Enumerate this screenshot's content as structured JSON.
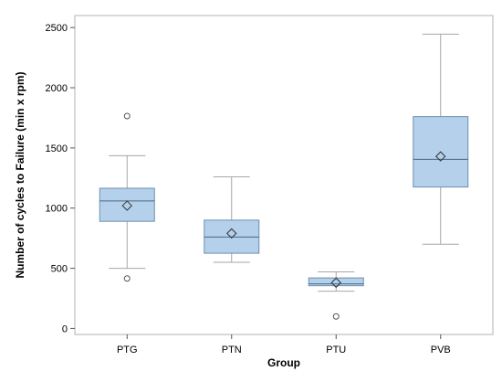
{
  "chart_data": {
    "type": "box",
    "xlabel": "Group",
    "ylabel": "Number of cycles to Failure (min x rpm)",
    "ylim": [
      -50,
      2600
    ],
    "yticks": [
      0,
      500,
      1000,
      1500,
      2000,
      2500
    ],
    "categories": [
      "PTG",
      "PTN",
      "PTU",
      "PVB"
    ],
    "boxes": [
      {
        "category": "PTG",
        "whisker_low": 500,
        "q1": 890,
        "median": 1060,
        "q3": 1165,
        "whisker_high": 1435,
        "mean": 1020,
        "outliers": [
          1765,
          415
        ]
      },
      {
        "category": "PTN",
        "whisker_low": 550,
        "q1": 625,
        "median": 760,
        "q3": 900,
        "whisker_high": 1260,
        "mean": 790,
        "outliers": []
      },
      {
        "category": "PTU",
        "whisker_low": 310,
        "q1": 355,
        "median": 370,
        "q3": 420,
        "whisker_high": 470,
        "mean": 380,
        "outliers": [
          100
        ]
      },
      {
        "category": "PVB",
        "whisker_low": 700,
        "q1": 1175,
        "median": 1405,
        "q3": 1760,
        "whisker_high": 2445,
        "mean": 1430,
        "outliers": []
      }
    ],
    "colors": {
      "box_fill": "#b4d0ea",
      "box_stroke": "#6f8fb0",
      "whisker": "#a6a6a6",
      "frame": "#b0b0b0"
    }
  }
}
